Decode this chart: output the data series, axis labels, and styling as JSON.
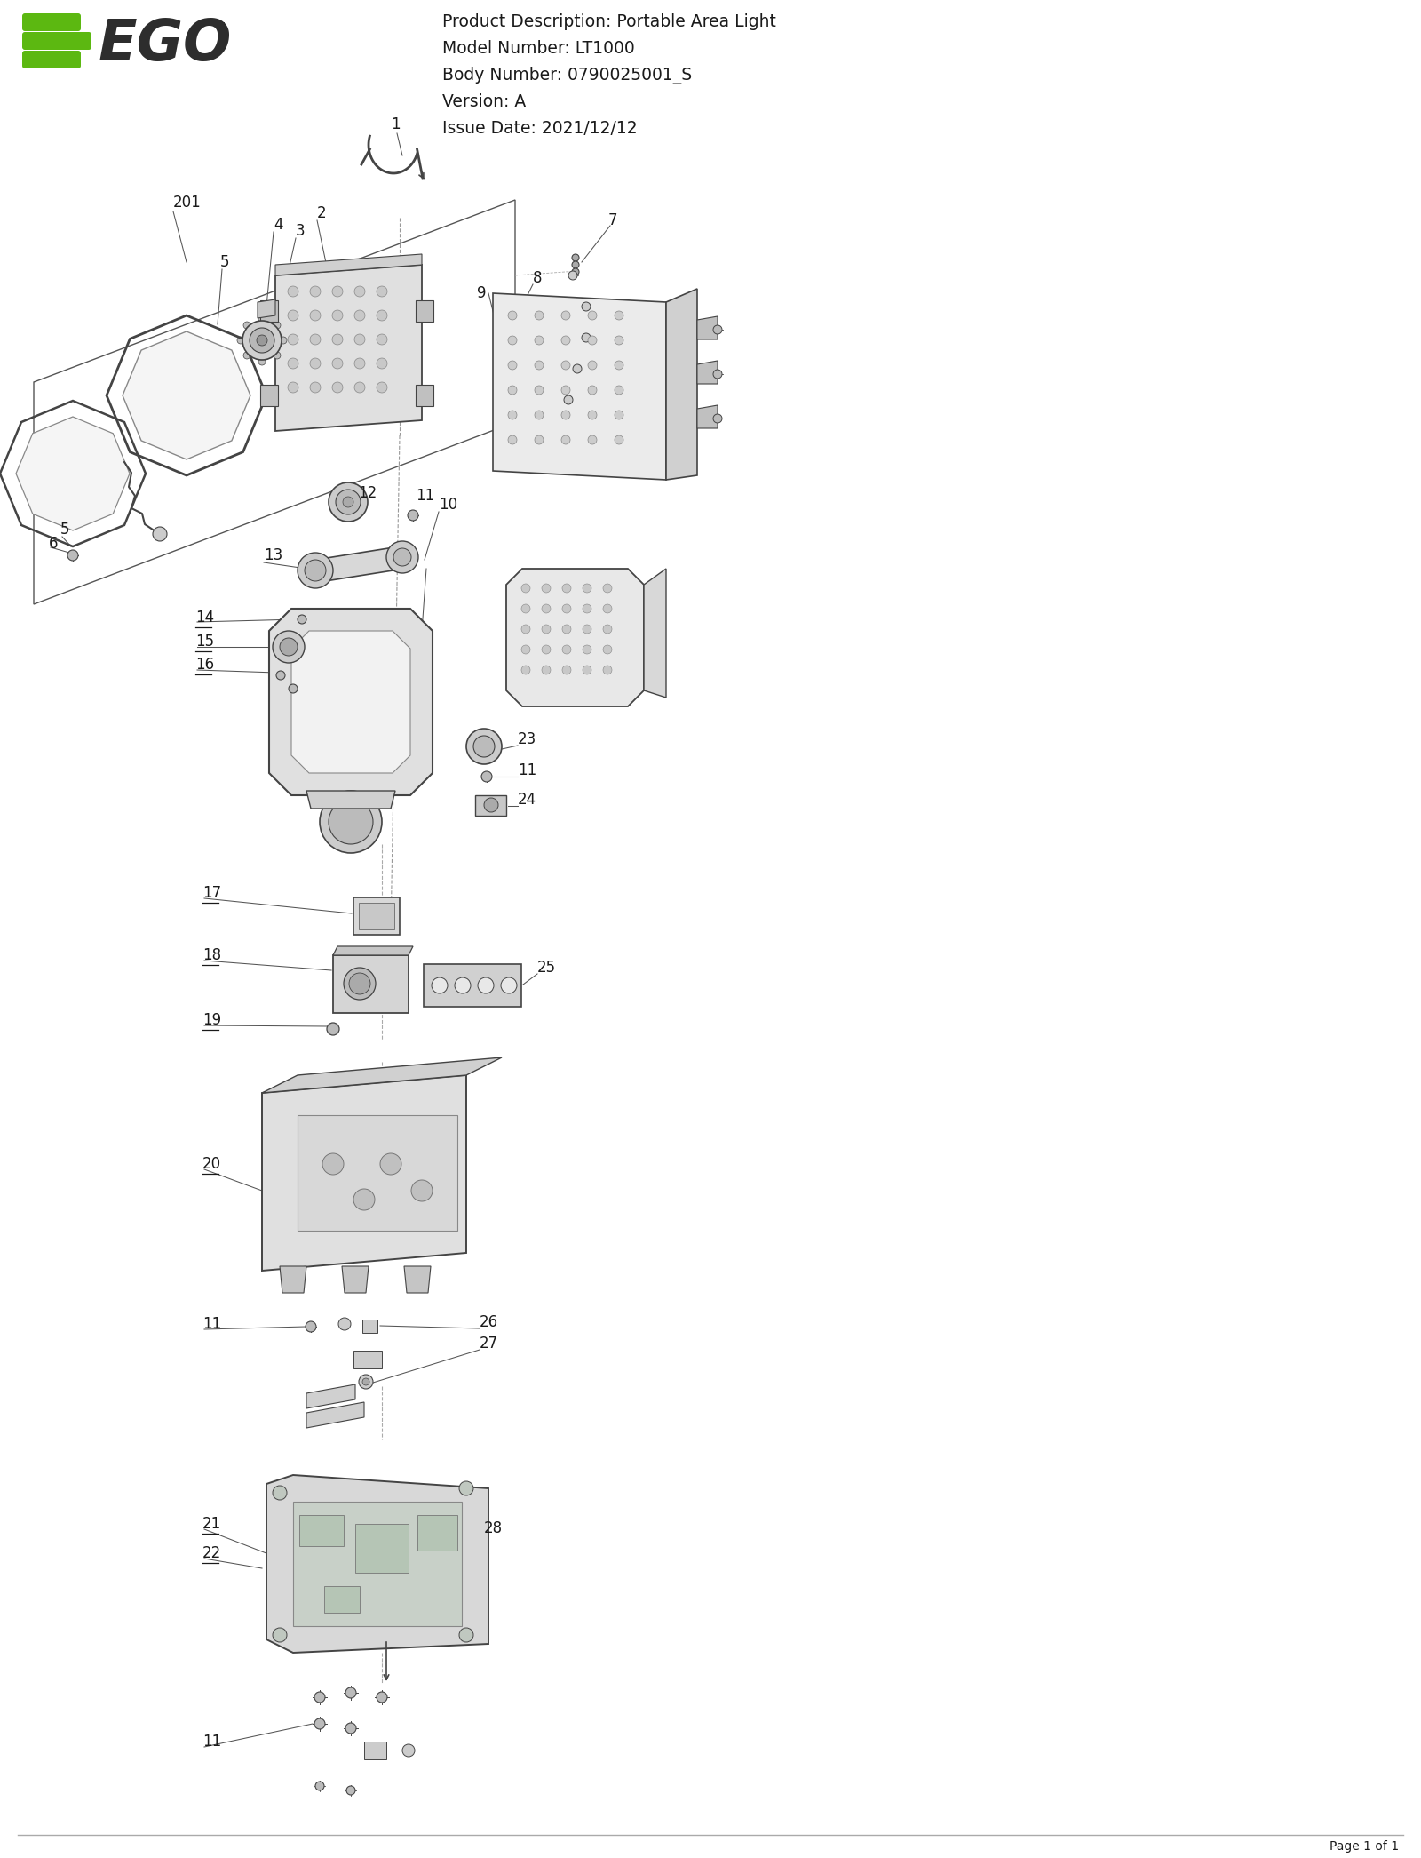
{
  "product_description": "Product Description: Portable Area Light",
  "model_number": "Model Number: LT1000",
  "body_number": "Body Number: 0790025001_S",
  "version": "Version: A",
  "issue_date": "Issue Date: 2021/12/12",
  "page_footer": "Page 1 of 1",
  "bg_color": "#ffffff",
  "text_color": "#1a1a1a",
  "line_color": "#2a2a2a",
  "part_line_color": "#444444",
  "logo_green": "#5cb811",
  "logo_dark": "#2d2d2d",
  "header_fontsize": 13.5,
  "label_fontsize": 12,
  "underline_labels": [
    "14",
    "15",
    "16",
    "17",
    "18",
    "19",
    "20",
    "21",
    "22",
    "201"
  ],
  "fig_w": 16.0,
  "fig_h": 20.91
}
